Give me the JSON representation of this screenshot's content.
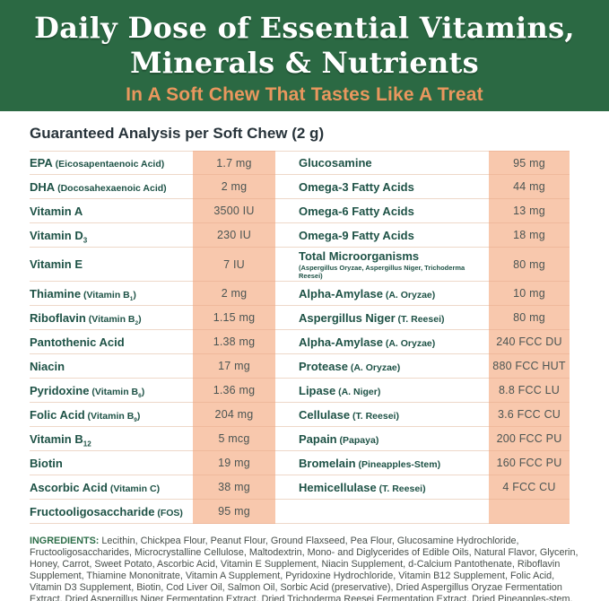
{
  "header": {
    "title_line1": "Daily Dose of Essential Vitamins,",
    "title_line2": "Minerals & Nutrients",
    "subtitle": "In A Soft Chew That Tastes Like A Treat"
  },
  "analysis": {
    "heading": "Guaranteed Analysis per Soft Chew (2 g)",
    "rows": [
      {
        "left": {
          "name": "EPA",
          "paren": "Eicosapentaenoic Acid",
          "value": "1.7 mg"
        },
        "right": {
          "name": "Glucosamine",
          "value": "95 mg"
        }
      },
      {
        "left": {
          "name": "DHA",
          "paren": "Docosahexaenoic Acid",
          "value": "2 mg"
        },
        "right": {
          "name": "Omega-3 Fatty Acids",
          "value": "44 mg"
        }
      },
      {
        "left": {
          "name": "Vitamin A",
          "value": "3500 IU"
        },
        "right": {
          "name": "Omega-6 Fatty Acids",
          "value": "13 mg"
        }
      },
      {
        "left": {
          "name": "Vitamin D",
          "name_sub": "3",
          "value": "230 IU"
        },
        "right": {
          "name": "Omega-9 Fatty Acids",
          "value": "18 mg"
        }
      },
      {
        "tall": true,
        "left": {
          "name": "Vitamin E",
          "value": "7 IU"
        },
        "right": {
          "name": "Total Microorganisms",
          "note": "(Aspergillus Oryzae, Aspergillus Niger, Trichoderma Reesei)",
          "value": "80 mg"
        }
      },
      {
        "left": {
          "name": "Thiamine",
          "paren": "Vitamin B",
          "paren_sub": "1",
          "value": "2 mg"
        },
        "right": {
          "name": "Alpha-Amylase",
          "paren": "A. Oryzae",
          "value": "10 mg"
        }
      },
      {
        "left": {
          "name": "Riboflavin",
          "paren": "Vitamin B",
          "paren_sub": "2",
          "value": "1.15 mg"
        },
        "right": {
          "name": "Aspergillus Niger",
          "paren": "T. Reesei",
          "value": "80 mg"
        }
      },
      {
        "left": {
          "name": "Pantothenic Acid",
          "value": "1.38 mg"
        },
        "right": {
          "name": "Alpha-Amylase",
          "paren": "A. Oryzae",
          "value": "240 FCC DU"
        }
      },
      {
        "left": {
          "name": "Niacin",
          "value": "17 mg"
        },
        "right": {
          "name": "Protease",
          "paren": "A. Oryzae",
          "value": "880 FCC HUT"
        }
      },
      {
        "left": {
          "name": "Pyridoxine",
          "paren": "Vitamin B",
          "paren_sub": "6",
          "value": "1.36 mg"
        },
        "right": {
          "name": "Lipase",
          "paren": "A. Niger",
          "value": "8.8 FCC LU"
        }
      },
      {
        "left": {
          "name": "Folic Acid",
          "paren": "Vitamin B",
          "paren_sub": "9",
          "value": "204 mg"
        },
        "right": {
          "name": "Cellulase",
          "paren": "T. Reesei",
          "value": "3.6 FCC CU"
        }
      },
      {
        "left": {
          "name": "Vitamin B",
          "name_sub": "12",
          "value": "5 mcg"
        },
        "right": {
          "name": "Papain",
          "paren": "Papaya",
          "value": "200 FCC PU"
        }
      },
      {
        "left": {
          "name": "Biotin",
          "value": "19 mg"
        },
        "right": {
          "name": "Bromelain",
          "paren": "Pineapples-Stem",
          "value": "160 FCC PU"
        }
      },
      {
        "left": {
          "name": "Ascorbic Acid",
          "paren": "Vitamin C",
          "value": "38 mg"
        },
        "right": {
          "name": "Hemicellulase",
          "paren": "T. Reesei",
          "value": "4 FCC CU"
        }
      },
      {
        "left": {
          "name": "Fructooligosaccharide",
          "paren": "FOS",
          "value": "95 mg"
        },
        "right": {
          "name": "",
          "value": ""
        }
      }
    ]
  },
  "ingredients": {
    "label": "INGREDIENTS:",
    "text": " Lecithin, Chickpea Flour, Peanut Flour, Ground Flaxseed, Pea Flour, Glucosamine Hydrochloride, Fructooligosaccharides, Microcrystalline Cellulose, Maltodextrin, Mono- and Diglycerides of Edible Oils, Natural Flavor, Glycerin, Honey, Carrot, Sweet Potato, Ascorbic Acid, Vitamin E Supplement, Niacin Supplement, d-Calcium Pantothenate, Riboflavin Supplement, Thiamine Mononitrate, Vitamin A Supplement, Pyridoxine Hydrochloride, Vitamin B12 Supplement, Folic Acid, Vitamin D3 Supplement, Biotin, Cod Liver Oil, Salmon Oil, Sorbic Acid (preservative), Dried Aspergillus Oryzae Fermentation Extract, Dried Aspergillus Niger Fermentation Extract, Dried Trichoderma Reesei Fermentation Extract, Dried Pineapples-stem, Papaya, Citric Acid (preservative), Mixed Tocopherols (preservative), Rosemary Extract"
  },
  "colors": {
    "header_green": "#2b6943",
    "subtitle_orange": "#e9975e",
    "value_cell_peach": "#f8c8ad",
    "name_text_green": "#1e5246",
    "value_text_gray": "#4b5553",
    "heading_text": "#27333a",
    "ingredients_label_green": "#2e6e49"
  }
}
